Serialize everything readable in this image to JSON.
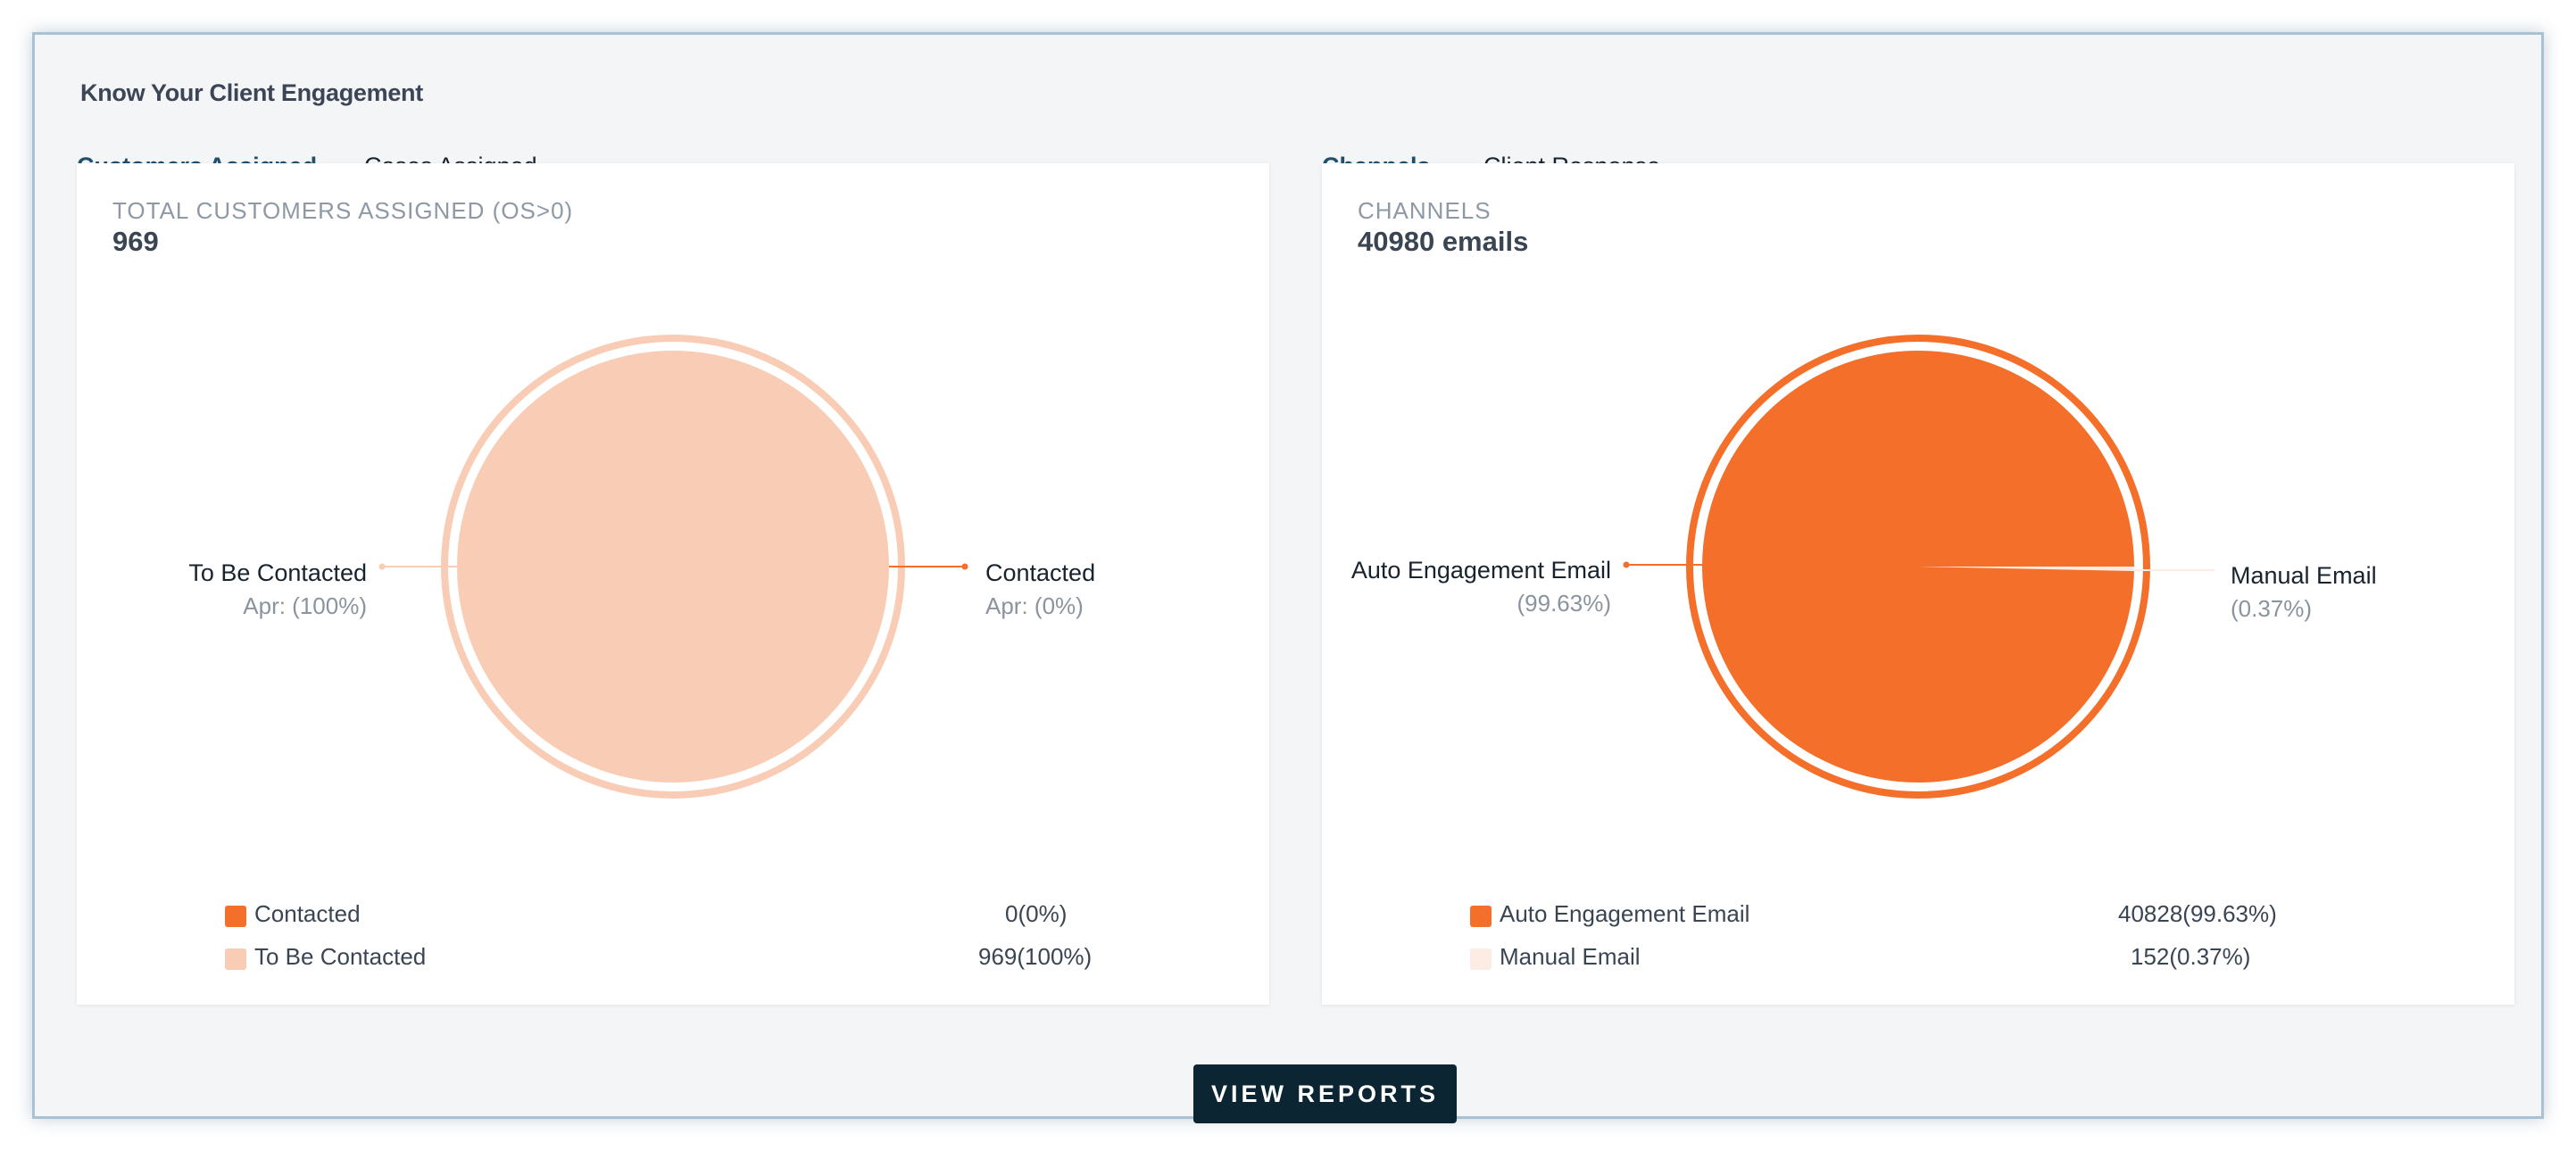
{
  "section_title": "Know Your Client Engagement",
  "left_panel": {
    "tabs": [
      {
        "label": "Customers Assigned",
        "active": true
      },
      {
        "label": "Cases Assigned",
        "active": false
      }
    ],
    "card_label": "TOTAL CUSTOMERS ASSIGNED (OS>0)",
    "card_value": "969",
    "slice_labels": {
      "to_be_contacted": {
        "name": "To Be Contacted",
        "sub": "Apr: (100%)"
      },
      "contacted": {
        "name": "Contacted",
        "sub": "Apr: (0%)"
      }
    },
    "legend": [
      {
        "name": "Contacted",
        "value": "0(0%)",
        "color": "#f46f2a"
      },
      {
        "name": "To Be Contacted",
        "value": "969(100%)",
        "color": "#f9cdb5"
      }
    ]
  },
  "right_panel": {
    "tabs": [
      {
        "label": "Channels",
        "active": true
      },
      {
        "label": "Client Response",
        "active": false
      }
    ],
    "card_label": "CHANNELS",
    "card_value": "40980 emails",
    "slice_labels": {
      "auto": {
        "name": "Auto Engagement Email",
        "sub": "(99.63%)"
      },
      "manual": {
        "name": "Manual Email",
        "sub": "(0.37%)"
      }
    },
    "legend": [
      {
        "name": "Auto Engagement Email",
        "value": "40828(99.63%)",
        "color": "#f46f2a"
      },
      {
        "name": "Manual Email",
        "value": "152(0.37%)",
        "color": "#fdece4"
      }
    ]
  },
  "view_reports_label": "VIEW REPORTS",
  "chart_data": [
    {
      "type": "pie",
      "title": "",
      "categories": [
        "Contacted",
        "To Be Contacted"
      ],
      "values": [
        0,
        969
      ],
      "percentages": [
        0,
        100
      ],
      "colors": [
        "#f46f2a",
        "#f9cdb5"
      ]
    },
    {
      "type": "pie",
      "title": "",
      "categories": [
        "Auto Engagement Email",
        "Manual Email"
      ],
      "values": [
        40828,
        152
      ],
      "percentages": [
        99.63,
        0.37
      ],
      "colors": [
        "#f46f2a",
        "#fdece4"
      ]
    }
  ]
}
